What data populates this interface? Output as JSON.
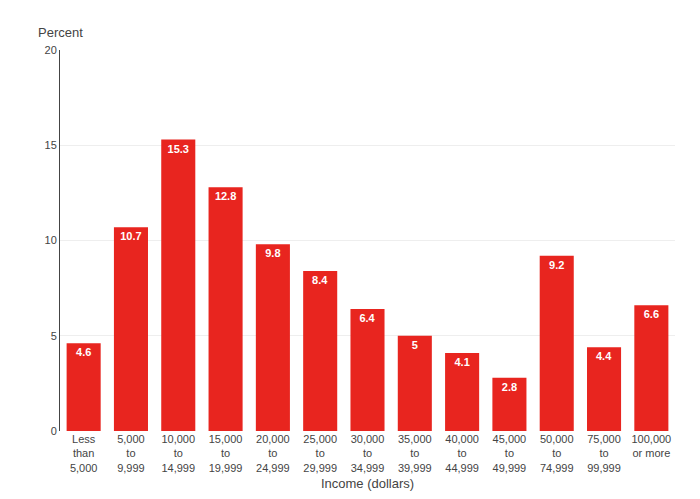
{
  "chart_data": {
    "type": "bar",
    "xlabel": "Income (dollars)",
    "ylabel": "Percent",
    "categories": [
      "Less\nthan\n5,000",
      "5,000\nto\n9,999",
      "10,000\nto\n14,999",
      "15,000\nto\n19,999",
      "20,000\nto\n24,999",
      "25,000\nto\n29,999",
      "30,000\nto\n34,999",
      "35,000\nto\n39,999",
      "40,000\nto\n44,999",
      "45,000\nto\n49,999",
      "50,000\nto\n74,999",
      "75,000\nto\n99,999",
      "100,000\nor more"
    ],
    "values": [
      4.6,
      10.7,
      15.3,
      12.8,
      9.8,
      8.4,
      6.4,
      5.0,
      4.1,
      2.8,
      9.2,
      4.4,
      6.6
    ],
    "color": "#e8251f",
    "ylim": [
      0,
      20
    ],
    "yticks": [
      0,
      5,
      10,
      15,
      20
    ],
    "grid": true,
    "data_labels": true
  }
}
